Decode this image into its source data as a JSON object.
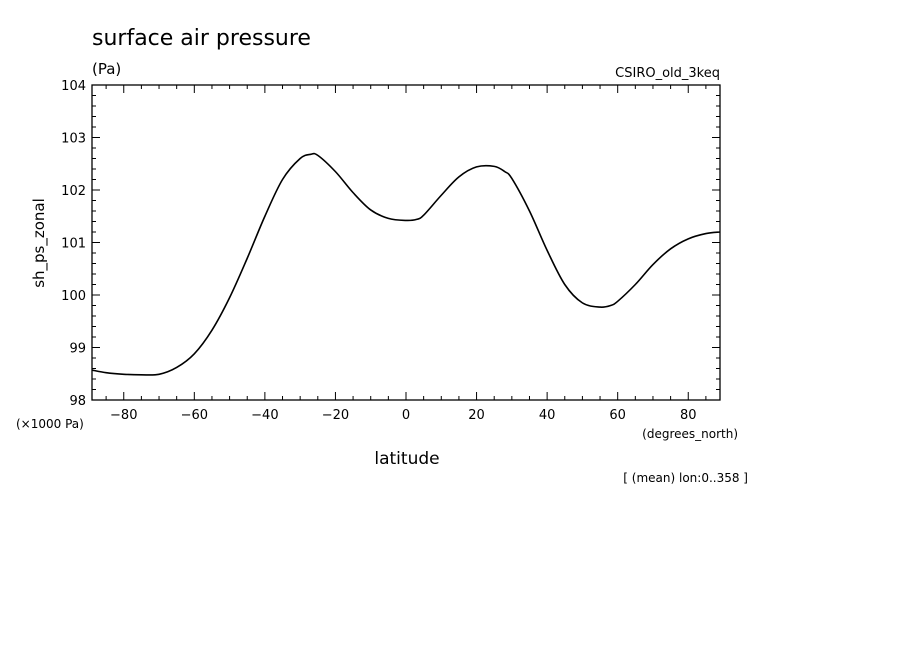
{
  "chart_data": {
    "type": "line",
    "title": "surface air pressure",
    "units": "(Pa)",
    "source_label": "CSIRO_old_3keq",
    "xlabel": "latitude",
    "x_units": "(degrees_north)",
    "ylabel": "sh_ps_zonal",
    "y_scale_note": "(×1000 Pa)",
    "footnote": "[ (mean) lon:0..358 ]",
    "xlim": [
      -89,
      89
    ],
    "ylim": [
      98,
      104
    ],
    "x_ticks": [
      -80,
      -60,
      -40,
      -20,
      0,
      20,
      40,
      60,
      80
    ],
    "x_tick_labels": [
      "−80",
      "−60",
      "−40",
      "−20",
      "0",
      "20",
      "40",
      "60",
      "80"
    ],
    "y_ticks": [
      98,
      99,
      100,
      101,
      102,
      103,
      104
    ],
    "y_tick_labels": [
      "98",
      "99",
      "100",
      "101",
      "102",
      "103",
      "104"
    ],
    "grid": false,
    "series": [
      {
        "color": "#000000",
        "x": [
          -89,
          -85,
          -80,
          -75,
          -70,
          -65,
          -60,
          -55,
          -50,
          -45,
          -40,
          -35,
          -30,
          -27,
          -25,
          -20,
          -15,
          -10,
          -5,
          0,
          3,
          5,
          10,
          15,
          20,
          25,
          28,
          30,
          35,
          40,
          45,
          50,
          55,
          58,
          60,
          65,
          70,
          75,
          80,
          85,
          89
        ],
        "y": [
          98.57,
          98.52,
          98.49,
          98.48,
          98.49,
          98.62,
          98.88,
          99.33,
          99.95,
          100.7,
          101.5,
          102.2,
          102.6,
          102.68,
          102.66,
          102.35,
          101.95,
          101.62,
          101.46,
          101.42,
          101.44,
          101.52,
          101.9,
          102.25,
          102.44,
          102.45,
          102.35,
          102.22,
          101.6,
          100.85,
          100.2,
          99.85,
          99.77,
          99.8,
          99.88,
          100.2,
          100.58,
          100.88,
          101.07,
          101.17,
          101.2
        ]
      }
    ]
  }
}
